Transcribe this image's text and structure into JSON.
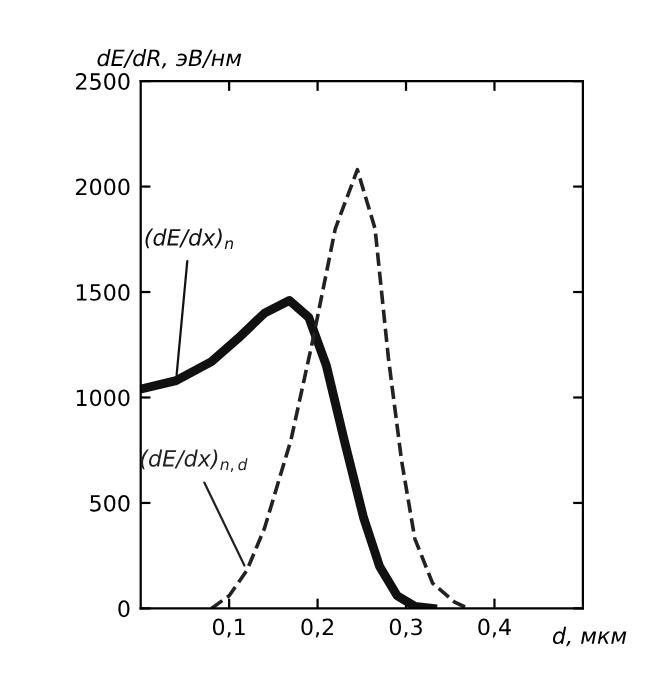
{
  "chart_data": {
    "type": "line",
    "xlabel": "d, мкм",
    "ylabel": "dE/dR, эВ/нм",
    "xlim": [
      0,
      0.5
    ],
    "ylim": [
      0,
      2500
    ],
    "xticks": [
      {
        "value": 0.1,
        "label": "0,1"
      },
      {
        "value": 0.2,
        "label": "0,2"
      },
      {
        "value": 0.3,
        "label": "0,3"
      },
      {
        "value": 0.4,
        "label": "0,4"
      }
    ],
    "yticks": [
      0,
      500,
      1000,
      1500,
      2000,
      2500
    ],
    "grid": false,
    "legend": false,
    "series": [
      {
        "name": "(dE/dx)$_{n}$",
        "color": "#111111",
        "line_style": "solid",
        "x": [
          0,
          0.04,
          0.08,
          0.11,
          0.14,
          0.168,
          0.19,
          0.21,
          0.23,
          0.252,
          0.27,
          0.29,
          0.31,
          0.33
        ],
        "values": [
          1040,
          1080,
          1170,
          1280,
          1400,
          1460,
          1380,
          1150,
          800,
          430,
          200,
          60,
          10,
          0
        ]
      },
      {
        "name": "(dE/dx)$_{n,d}$",
        "color": "#222222",
        "line_style": "dashed",
        "x": [
          0.08,
          0.1,
          0.12,
          0.14,
          0.17,
          0.195,
          0.22,
          0.245,
          0.265,
          0.28,
          0.295,
          0.31,
          0.33,
          0.355,
          0.37
        ],
        "values": [
          0,
          60,
          180,
          380,
          800,
          1280,
          1800,
          2080,
          1800,
          1190,
          700,
          330,
          120,
          30,
          0
        ]
      }
    ]
  }
}
